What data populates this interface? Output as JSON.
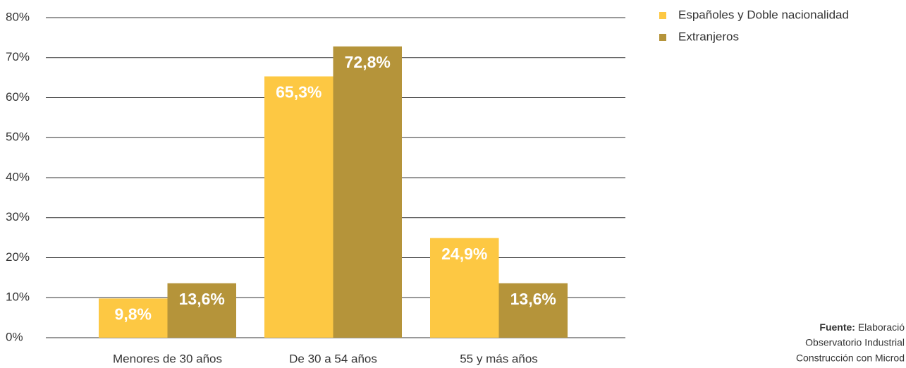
{
  "chart_data": {
    "type": "bar",
    "categories": [
      "Menores de 30 años",
      "De 30 a 54 años",
      "55 y más años"
    ],
    "series": [
      {
        "name": "Españoles y Doble nacionalidad",
        "color": "#fdc843",
        "values": [
          9.8,
          65.3,
          24.9
        ],
        "value_labels": [
          "9,8%",
          "65,3%",
          "24,9%"
        ]
      },
      {
        "name": "Extranjeros",
        "color": "#b5943a",
        "values": [
          13.6,
          72.8,
          13.6
        ],
        "value_labels": [
          "13,6%",
          "72,8%",
          "13,6%"
        ]
      }
    ],
    "ylim": [
      0,
      80
    ],
    "yticks": [
      {
        "value": 0,
        "label": "0%"
      },
      {
        "value": 10,
        "label": "10%"
      },
      {
        "value": 20,
        "label": "20%"
      },
      {
        "value": 30,
        "label": "30%"
      },
      {
        "value": 40,
        "label": "40%"
      },
      {
        "value": 50,
        "label": "50%"
      },
      {
        "value": 60,
        "label": "60%"
      },
      {
        "value": 70,
        "label": "70%"
      },
      {
        "value": 80,
        "label": "80%"
      }
    ],
    "grid": true,
    "legend": "top-right",
    "source": {
      "label": "Fuente:",
      "lines": [
        "Elaboració",
        "Observatorio Industrial",
        "Construcción con Microd"
      ]
    }
  }
}
